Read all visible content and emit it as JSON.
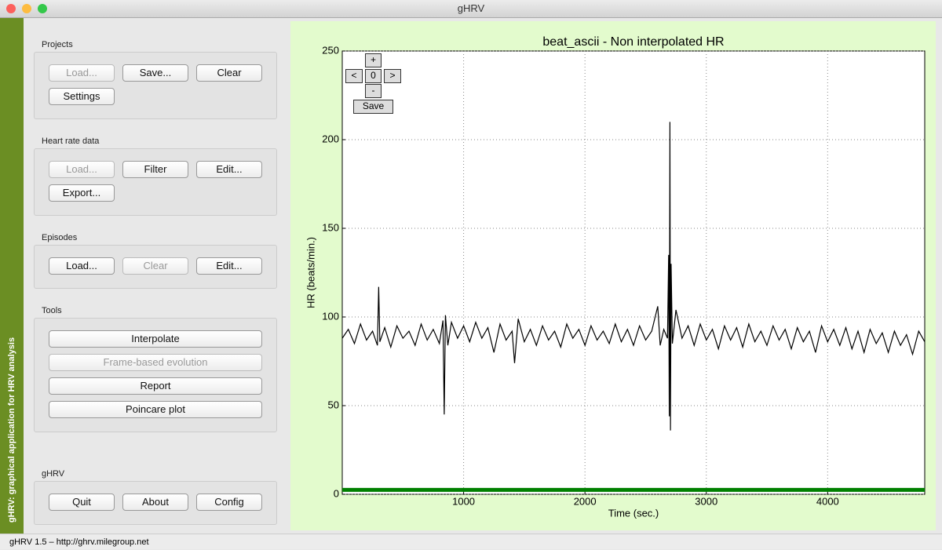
{
  "window": {
    "title": "gHRV"
  },
  "sidebar_label": "gHRV: graphical application for HRV analysis",
  "groups": [
    {
      "title": "Projects",
      "buttons": [
        {
          "label": "Load...",
          "enabled": false
        },
        {
          "label": "Save...",
          "enabled": true
        },
        {
          "label": "Clear",
          "enabled": true
        },
        {
          "label": "Settings",
          "enabled": true
        }
      ]
    },
    {
      "title": "Heart rate data",
      "buttons": [
        {
          "label": "Load...",
          "enabled": false
        },
        {
          "label": "Filter",
          "enabled": true
        },
        {
          "label": "Edit...",
          "enabled": true
        },
        {
          "label": "Export...",
          "enabled": true
        }
      ]
    },
    {
      "title": "Episodes",
      "buttons": [
        {
          "label": "Load...",
          "enabled": true
        },
        {
          "label": "Clear",
          "enabled": false
        },
        {
          "label": "Edit...",
          "enabled": true
        }
      ]
    },
    {
      "title": "Tools",
      "buttons": [
        {
          "label": "Interpolate",
          "enabled": true
        },
        {
          "label": "Frame-based evolution",
          "enabled": false
        },
        {
          "label": "Report",
          "enabled": true
        },
        {
          "label": "Poincare plot",
          "enabled": true
        }
      ]
    },
    {
      "title": "gHRV",
      "buttons": [
        {
          "label": "Quit",
          "enabled": true
        },
        {
          "label": "About",
          "enabled": true
        },
        {
          "label": "Config",
          "enabled": true
        }
      ]
    }
  ],
  "plot_controls": {
    "plus": "+",
    "left": "<",
    "zoom": "0",
    "right": ">",
    "minus": "-",
    "save": "Save"
  },
  "chart_data": {
    "type": "line",
    "title": "beat_ascii - Non interpolated HR",
    "x_label": "Time (sec.)",
    "y_label": "HR (beats/min.)",
    "xlim": [
      0,
      4800
    ],
    "ylim": [
      0,
      250
    ],
    "xticks": [
      1000,
      2000,
      3000,
      4000
    ],
    "yticks": [
      0,
      50,
      100,
      150,
      200,
      250
    ],
    "grid": true,
    "series": [
      {
        "color": "#000000",
        "x": [
          0,
          50,
          100,
          150,
          200,
          250,
          290,
          300,
          310,
          350,
          400,
          450,
          500,
          550,
          600,
          650,
          700,
          750,
          800,
          830,
          840,
          850,
          870,
          900,
          950,
          1000,
          1050,
          1100,
          1150,
          1200,
          1250,
          1300,
          1350,
          1400,
          1420,
          1450,
          1500,
          1550,
          1600,
          1650,
          1700,
          1750,
          1800,
          1850,
          1900,
          1950,
          2000,
          2050,
          2100,
          2150,
          2200,
          2250,
          2300,
          2350,
          2400,
          2450,
          2500,
          2550,
          2600,
          2620,
          2650,
          2680,
          2690,
          2695,
          2700,
          2705,
          2710,
          2720,
          2750,
          2800,
          2850,
          2900,
          2950,
          3000,
          3050,
          3100,
          3150,
          3200,
          3250,
          3300,
          3350,
          3400,
          3450,
          3500,
          3550,
          3600,
          3650,
          3700,
          3750,
          3800,
          3850,
          3900,
          3950,
          4000,
          4050,
          4100,
          4150,
          4200,
          4250,
          4300,
          4350,
          4400,
          4450,
          4500,
          4550,
          4600,
          4650,
          4700,
          4750,
          4800
        ],
        "values": [
          88,
          93,
          85,
          96,
          87,
          92,
          84,
          117,
          86,
          94,
          83,
          95,
          88,
          92,
          84,
          96,
          87,
          93,
          85,
          98,
          45,
          101,
          84,
          97,
          88,
          95,
          86,
          97,
          88,
          94,
          80,
          96,
          87,
          92,
          74,
          99,
          86,
          93,
          84,
          95,
          87,
          92,
          83,
          96,
          88,
          93,
          84,
          95,
          87,
          92,
          85,
          96,
          86,
          93,
          84,
          95,
          87,
          92,
          106,
          84,
          93,
          88,
          135,
          44,
          210,
          36,
          130,
          85,
          104,
          88,
          95,
          84,
          96,
          87,
          93,
          82,
          95,
          87,
          94,
          83,
          96,
          86,
          92,
          84,
          95,
          87,
          93,
          82,
          94,
          86,
          92,
          80,
          95,
          86,
          93,
          84,
          94,
          82,
          92,
          80,
          93,
          85,
          91,
          80,
          92,
          84,
          90,
          79,
          92,
          86
        ]
      },
      {
        "color": "#008000",
        "x": [
          0,
          4800
        ],
        "values": [
          2.5,
          2.5
        ]
      }
    ]
  },
  "status": "gHRV 1.5 – http://ghrv.milegroup.net"
}
